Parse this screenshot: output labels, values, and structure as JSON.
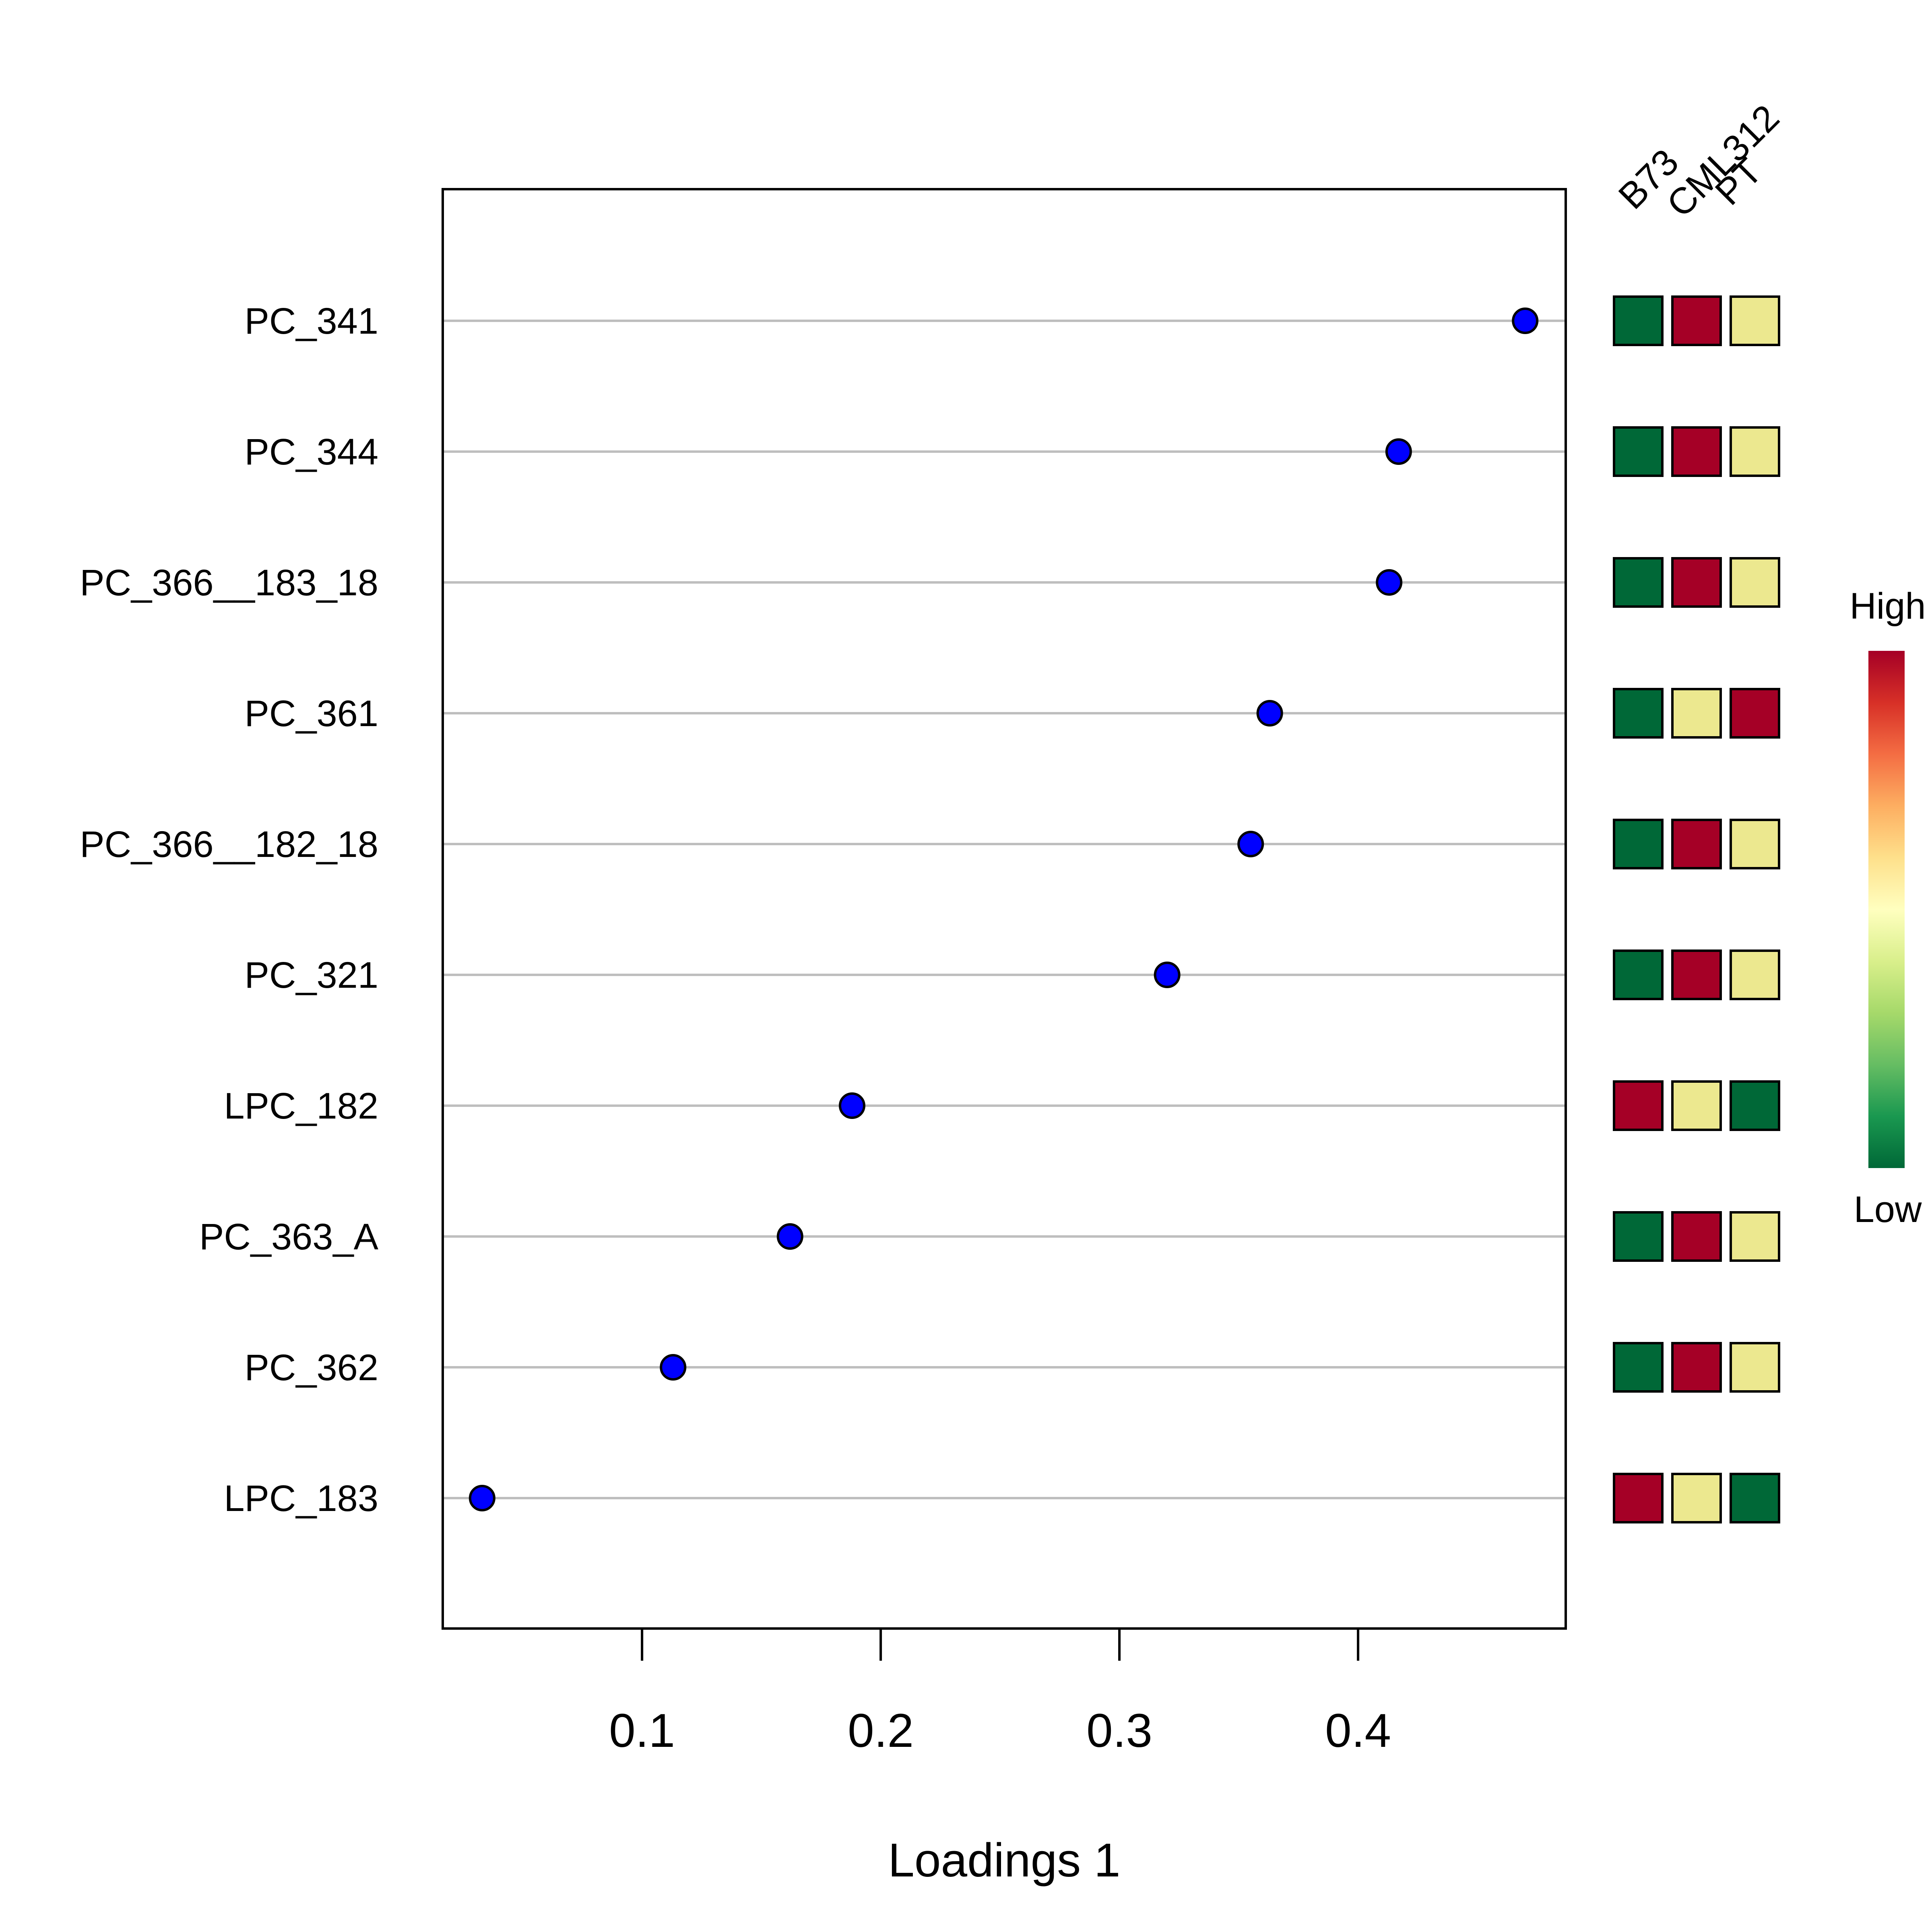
{
  "chart_data": {
    "type": "scatter",
    "title": "",
    "xlabel": "Loadings 1",
    "ylabel": "",
    "xlim": [
      0.0165,
      0.487
    ],
    "xticks": [
      0.1,
      0.2,
      0.3,
      0.4
    ],
    "xtick_labels": [
      "0.1",
      "0.2",
      "0.3",
      "0.4"
    ],
    "grid": "horizontal guide lines",
    "categories": [
      "PC_341",
      "PC_344",
      "PC_366__183_18",
      "PC_361",
      "PC_366__182_18",
      "PC_321",
      "LPC_182",
      "PC_363_A",
      "PC_362",
      "LPC_183"
    ],
    "values": [
      0.47,
      0.417,
      0.413,
      0.363,
      0.355,
      0.32,
      0.188,
      0.162,
      0.113,
      0.033
    ],
    "point_color": "#0000ff",
    "heatmap": {
      "columns": [
        "B73",
        "CML312",
        "PT"
      ],
      "levels": [
        [
          "low",
          "high",
          "mid"
        ],
        [
          "low",
          "high",
          "mid"
        ],
        [
          "low",
          "high",
          "mid"
        ],
        [
          "low",
          "mid",
          "high"
        ],
        [
          "low",
          "high",
          "mid"
        ],
        [
          "low",
          "high",
          "mid"
        ],
        [
          "high",
          "mid",
          "low"
        ],
        [
          "low",
          "high",
          "mid"
        ],
        [
          "low",
          "high",
          "mid"
        ],
        [
          "high",
          "mid",
          "low"
        ]
      ],
      "colors": {
        "low": "#006837",
        "mid": "#ece88f",
        "high": "#a50026"
      }
    },
    "legend": {
      "position": "right",
      "high_label": "High",
      "low_label": "Low",
      "gradient": [
        "#a50026",
        "#d73027",
        "#f46d43",
        "#fdae61",
        "#fee08b",
        "#ffffbf",
        "#d9ef8b",
        "#a6d96a",
        "#66bd63",
        "#1a9850",
        "#006837"
      ]
    }
  }
}
